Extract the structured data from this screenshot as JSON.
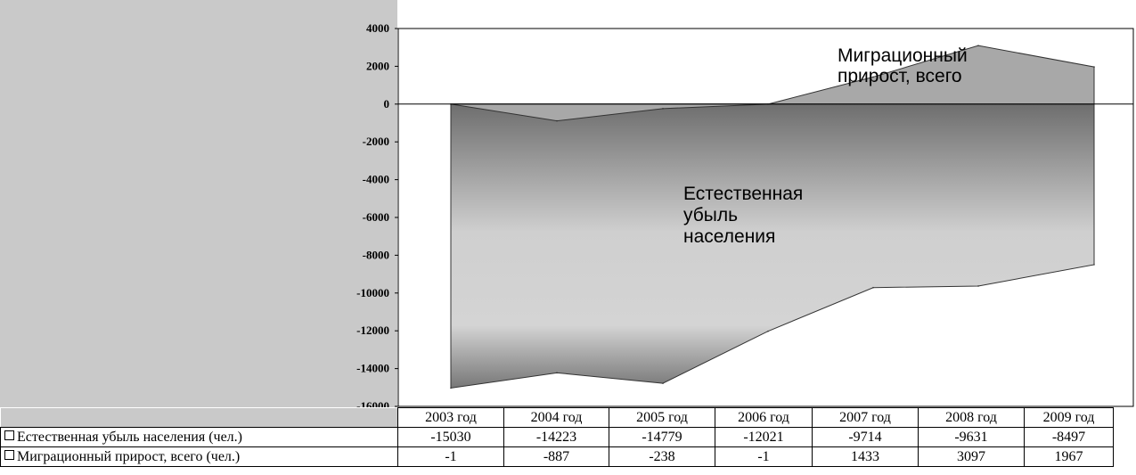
{
  "chart_data": {
    "type": "area",
    "categories": [
      "2003 год",
      "2004 год",
      "2005 год",
      "2006 год",
      "2007 год",
      "2008 год",
      "2009 год"
    ],
    "series": [
      {
        "name": "Естественная убыль населения (чел.)",
        "values": [
          -15030,
          -14223,
          -14779,
          -12021,
          -9714,
          -9631,
          -8497
        ],
        "color": "#8c8c8c"
      },
      {
        "name": "Миграционный прирост, всего (чел.)",
        "values": [
          -1,
          -887,
          -238,
          -1,
          1433,
          3097,
          1967
        ],
        "color": "#a6a6a6"
      }
    ],
    "y_ticks": [
      "4000",
      "2000",
      "0",
      "-2000",
      "-4000",
      "-6000",
      "-8000",
      "-10000",
      "-12000",
      "-14000",
      "-16000"
    ],
    "ylim": [
      -16000,
      4000
    ],
    "annotations": [
      {
        "text": "Миграционный прирост, всего",
        "lines": [
          "Миграционный",
          "прирост, всего"
        ]
      },
      {
        "text": "Естественная убыль населения",
        "lines": [
          "Естественная",
          "убыль",
          "населения"
        ]
      }
    ],
    "table": {
      "rows": [
        {
          "label": "Естественная убыль населения (чел.)",
          "values": [
            "-15030",
            "-14223",
            "-14779",
            "-12021",
            "-9714",
            "-9631",
            "-8497"
          ]
        },
        {
          "label": "Миграционный прирост, всего (чел.)",
          "values": [
            "-1",
            "-887",
            "-238",
            "-1",
            "1433",
            "3097",
            "1967"
          ]
        }
      ]
    }
  }
}
